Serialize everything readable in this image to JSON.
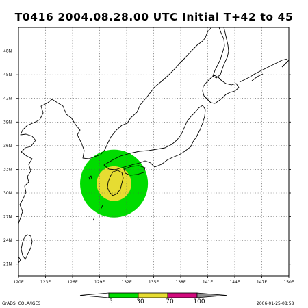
{
  "title": "T0416  2004.08.28.00  UTC  Initial  T+42  to  45",
  "map": {
    "lon_range": [
      120,
      150
    ],
    "lat_range": [
      19.5,
      51
    ],
    "lon_ticks": [
      "120E",
      "123E",
      "126E",
      "129E",
      "132E",
      "135E",
      "138E",
      "141E",
      "144E",
      "147E",
      "150E"
    ],
    "lon_tick_values": [
      120,
      123,
      126,
      129,
      132,
      135,
      138,
      141,
      144,
      147,
      150
    ],
    "lat_ticks": [
      "21N",
      "24N",
      "27N",
      "30N",
      "33N",
      "36N",
      "39N",
      "42N",
      "45N",
      "48N"
    ],
    "lat_tick_values": [
      21,
      24,
      27,
      30,
      33,
      36,
      39,
      42,
      45,
      48
    ],
    "grid": "dotted",
    "probability_area": {
      "center_lon": 130.6,
      "center_lat": 31.2,
      "outer_radius_deg_lat": 4.3,
      "inner_radius_deg_lat": 2.2,
      "outer_color": "#00dc00",
      "inner_color": "#e6dc32"
    }
  },
  "colorbar": {
    "labels": [
      "5",
      "30",
      "70",
      "100"
    ],
    "colors": [
      "#00dc00",
      "#e6dc32",
      "#d20a7d",
      "#8c8c8c"
    ]
  },
  "footer": {
    "credit": "GrADS: COLA/IGES",
    "timestamp": "2006-01-25-08:58"
  }
}
